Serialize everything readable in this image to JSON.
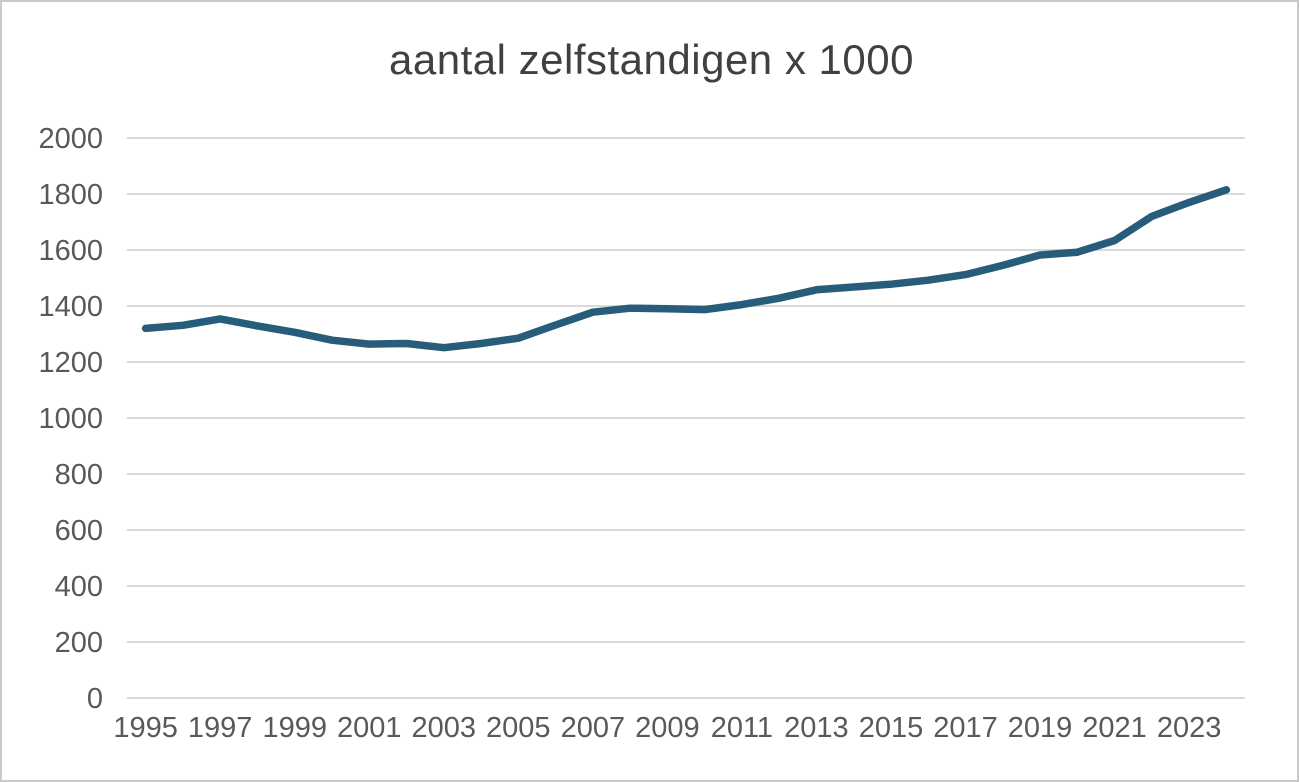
{
  "chart_data": {
    "type": "line",
    "title": "aantal zelfstandigen x 1000",
    "categories": [
      1995,
      1996,
      1997,
      1998,
      1999,
      2000,
      2001,
      2002,
      2003,
      2004,
      2005,
      2006,
      2007,
      2008,
      2009,
      2010,
      2011,
      2012,
      2013,
      2014,
      2015,
      2016,
      2017,
      2018,
      2019,
      2020,
      2021,
      2022,
      2023,
      2024
    ],
    "series": [
      {
        "name": "aantal zelfstandigen",
        "values": [
          1320,
          1331,
          1354,
          1329,
          1306,
          1278,
          1264,
          1266,
          1251,
          1266,
          1285,
          1332,
          1378,
          1392,
          1390,
          1387,
          1405,
          1428,
          1458,
          1468,
          1478,
          1492,
          1512,
          1545,
          1582,
          1592,
          1634,
          1720,
          1770,
          1815
        ]
      }
    ],
    "xlabel": "",
    "ylabel": "",
    "ylim": [
      0,
      2000
    ],
    "ytick_step": 200,
    "ytick_labels": [
      "0",
      "200",
      "400",
      "600",
      "800",
      "1000",
      "1200",
      "1400",
      "1600",
      "1800",
      "2000"
    ],
    "xtick_labels": [
      "1995",
      "1997",
      "1999",
      "2001",
      "2003",
      "2005",
      "2007",
      "2009",
      "2011",
      "2013",
      "2015",
      "2017",
      "2019",
      "2021",
      "2023"
    ],
    "grid": "horizontal",
    "legend_position": "none",
    "colors": {
      "line": "#275d7b",
      "gridline": "#d9d9d9",
      "tick_label": "#595959",
      "title": "#404040",
      "background": "#ffffff",
      "border": "#c9c9c9"
    }
  }
}
